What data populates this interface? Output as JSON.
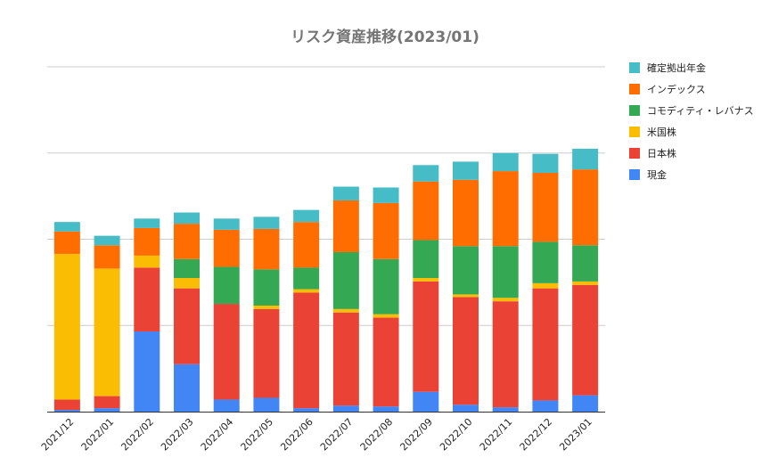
{
  "chart_data": {
    "type": "bar",
    "stacked": true,
    "title": "リスク資産推移(2023/01)",
    "xlabel": "",
    "ylabel": "",
    "y_tick_labels_shown": false,
    "grid": true,
    "legend_position": "right",
    "ylim": [
      0,
      400
    ],
    "categories": [
      "2021/12",
      "2022/01",
      "2022/02",
      "2022/03",
      "2022/04",
      "2022/05",
      "2022/06",
      "2022/07",
      "2022/08",
      "2022/09",
      "2022/10",
      "2022/11",
      "2022/12",
      "2023/01"
    ],
    "series": [
      {
        "name": "現金",
        "color": "#4285f4",
        "values": [
          2,
          4,
          93,
          55,
          14,
          16,
          4,
          7,
          6,
          23,
          8,
          5,
          13,
          19
        ]
      },
      {
        "name": "日本株",
        "color": "#ea4335",
        "values": [
          12,
          14,
          74,
          88,
          111,
          103,
          134,
          108,
          103,
          128,
          125,
          123,
          130,
          128
        ]
      },
      {
        "name": "米国株",
        "color": "#fbbc04",
        "values": [
          169,
          148,
          14,
          12,
          0,
          4,
          4,
          4,
          4,
          4,
          3,
          4,
          6,
          4
        ]
      },
      {
        "name": "コモディティ・レバナス",
        "color": "#34a853",
        "values": [
          0,
          0,
          0,
          22,
          43,
          42,
          25,
          66,
          64,
          44,
          56,
          60,
          48,
          42
        ]
      },
      {
        "name": "インデックス",
        "color": "#ff6d01",
        "values": [
          26,
          27,
          32,
          41,
          43,
          47,
          53,
          60,
          65,
          68,
          77,
          87,
          80,
          88
        ]
      },
      {
        "name": "確定拠出年金",
        "color": "#46bdc6",
        "values": [
          11,
          11,
          11,
          13,
          13,
          14,
          14,
          16,
          18,
          19,
          21,
          21,
          22,
          24
        ]
      }
    ]
  },
  "colors": {
    "title": "#757575",
    "gridline": "#cccccc",
    "axis": "#333333",
    "tick_label": "#222222"
  }
}
